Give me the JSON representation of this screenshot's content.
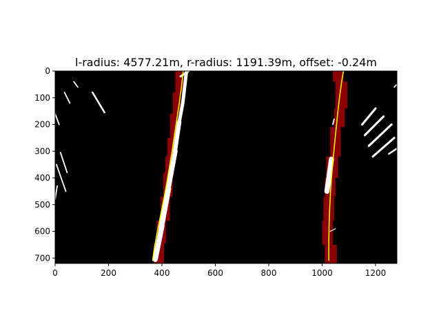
{
  "chart_data": {
    "type": "image",
    "title": "l-radius: 4577.21m, r-radius: 1191.39m, offset: -0.24m",
    "xlabel": "",
    "ylabel": "",
    "xlim": [
      0,
      1280
    ],
    "ylim": [
      720,
      0
    ],
    "x_ticks": [
      "0",
      "200",
      "400",
      "600",
      "800",
      "1000",
      "1200"
    ],
    "y_ticks": [
      "0",
      "100",
      "200",
      "300",
      "400",
      "500",
      "600",
      "700"
    ],
    "grid": false,
    "colors": {
      "background": "#000000",
      "window": "#8b0000",
      "lane_pixels": "#ffffff",
      "fit_line": "#ffff00"
    },
    "fit_lines": [
      {
        "points": [
          [
            365,
            710
          ],
          [
            372,
            660
          ],
          [
            383,
            600
          ],
          [
            395,
            540
          ],
          [
            407,
            480
          ],
          [
            418,
            420
          ],
          [
            428,
            360
          ],
          [
            438,
            300
          ],
          [
            447,
            240
          ],
          [
            456,
            180
          ],
          [
            465,
            120
          ],
          [
            473,
            60
          ],
          [
            480,
            0
          ]
        ]
      },
      {
        "points": [
          [
            1025,
            710
          ],
          [
            1025,
            640
          ],
          [
            1026,
            580
          ],
          [
            1028,
            520
          ],
          [
            1031,
            460
          ],
          [
            1035,
            400
          ],
          [
            1040,
            340
          ],
          [
            1046,
            280
          ],
          [
            1052,
            220
          ],
          [
            1058,
            160
          ],
          [
            1065,
            100
          ],
          [
            1073,
            40
          ],
          [
            1080,
            0
          ]
        ]
      }
    ],
    "windows": [
      {
        "x": 370,
        "y": 645,
        "w": 38,
        "h": 75
      },
      {
        "x": 380,
        "y": 560,
        "w": 35,
        "h": 85
      },
      {
        "x": 395,
        "y": 470,
        "w": 35,
        "h": 90
      },
      {
        "x": 405,
        "y": 380,
        "w": 35,
        "h": 90
      },
      {
        "x": 412,
        "y": 320,
        "w": 32,
        "h": 70
      },
      {
        "x": 420,
        "y": 250,
        "w": 30,
        "h": 70
      },
      {
        "x": 430,
        "y": 160,
        "w": 30,
        "h": 90
      },
      {
        "x": 440,
        "y": 80,
        "w": 30,
        "h": 80
      },
      {
        "x": 450,
        "y": 0,
        "w": 30,
        "h": 80
      },
      {
        "x": 1010,
        "y": 650,
        "w": 45,
        "h": 70
      },
      {
        "x": 1000,
        "y": 560,
        "w": 40,
        "h": 90
      },
      {
        "x": 1005,
        "y": 470,
        "w": 40,
        "h": 90
      },
      {
        "x": 1010,
        "y": 400,
        "w": 40,
        "h": 70
      },
      {
        "x": 1015,
        "y": 320,
        "w": 45,
        "h": 80
      },
      {
        "x": 1030,
        "y": 210,
        "w": 40,
        "h": 110
      },
      {
        "x": 1045,
        "y": 140,
        "w": 40,
        "h": 70
      },
      {
        "x": 1050,
        "y": 40,
        "w": 45,
        "h": 100
      },
      {
        "x": 1040,
        "y": 0,
        "w": 40,
        "h": 40
      }
    ],
    "lane_pixels": [
      {
        "x1": 375,
        "y1": 705,
        "x2": 400,
        "y2": 580,
        "w": 12
      },
      {
        "x1": 398,
        "y1": 585,
        "x2": 425,
        "y2": 440,
        "w": 12
      },
      {
        "x1": 423,
        "y1": 445,
        "x2": 450,
        "y2": 300,
        "w": 11
      },
      {
        "x1": 448,
        "y1": 305,
        "x2": 465,
        "y2": 190,
        "w": 10
      },
      {
        "x1": 465,
        "y1": 190,
        "x2": 478,
        "y2": 120,
        "w": 8
      },
      {
        "x1": 478,
        "y1": 120,
        "x2": 492,
        "y2": 0,
        "w": 8
      },
      {
        "x1": 1018,
        "y1": 450,
        "x2": 1035,
        "y2": 330,
        "w": 12
      },
      {
        "x1": 1030,
        "y1": 600,
        "x2": 1050,
        "y2": 590,
        "w": 2
      },
      {
        "x1": 1040,
        "y1": 200,
        "x2": 1045,
        "y2": 180,
        "w": 3
      },
      {
        "x1": 470,
        "y1": 20,
        "x2": 500,
        "y2": 0,
        "w": 5
      },
      {
        "x1": 0,
        "y1": 480,
        "x2": 8,
        "y2": 430,
        "w": 3
      },
      {
        "x1": 5,
        "y1": 350,
        "x2": 40,
        "y2": 450,
        "w": 3
      },
      {
        "x1": 20,
        "y1": 305,
        "x2": 45,
        "y2": 380,
        "w": 3
      },
      {
        "x1": 0,
        "y1": 160,
        "x2": 15,
        "y2": 200,
        "w": 3
      },
      {
        "x1": 35,
        "y1": 80,
        "x2": 55,
        "y2": 120,
        "w": 3
      },
      {
        "x1": 70,
        "y1": 40,
        "x2": 85,
        "y2": 60,
        "w": 3
      },
      {
        "x1": 140,
        "y1": 80,
        "x2": 185,
        "y2": 155,
        "w": 4
      },
      {
        "x1": 1150,
        "y1": 200,
        "x2": 1200,
        "y2": 140,
        "w": 5
      },
      {
        "x1": 1160,
        "y1": 240,
        "x2": 1230,
        "y2": 170,
        "w": 5
      },
      {
        "x1": 1175,
        "y1": 280,
        "x2": 1260,
        "y2": 200,
        "w": 5
      },
      {
        "x1": 1190,
        "y1": 320,
        "x2": 1270,
        "y2": 250,
        "w": 5
      },
      {
        "x1": 1250,
        "y1": 310,
        "x2": 1280,
        "y2": 290,
        "w": 4
      },
      {
        "x1": 1270,
        "y1": 60,
        "x2": 1280,
        "y2": 50,
        "w": 3
      }
    ]
  }
}
